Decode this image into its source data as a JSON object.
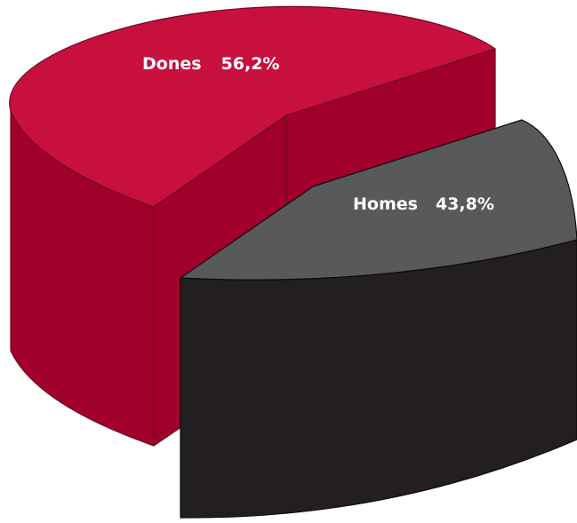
{
  "chart_data": {
    "type": "pie",
    "style": "3d-exploded",
    "title": "",
    "slices": [
      {
        "label": "Dones",
        "value": 56.2,
        "value_text": "56,2%",
        "color": "#c8103e",
        "side_color": "#a1002c",
        "edge_color": "#6d0a1e"
      },
      {
        "label": "Homes",
        "value": 43.8,
        "value_text": "43,8%",
        "color": "#58595b",
        "side_color": "#231f20",
        "edge_color": "#0c0a0b"
      }
    ]
  }
}
